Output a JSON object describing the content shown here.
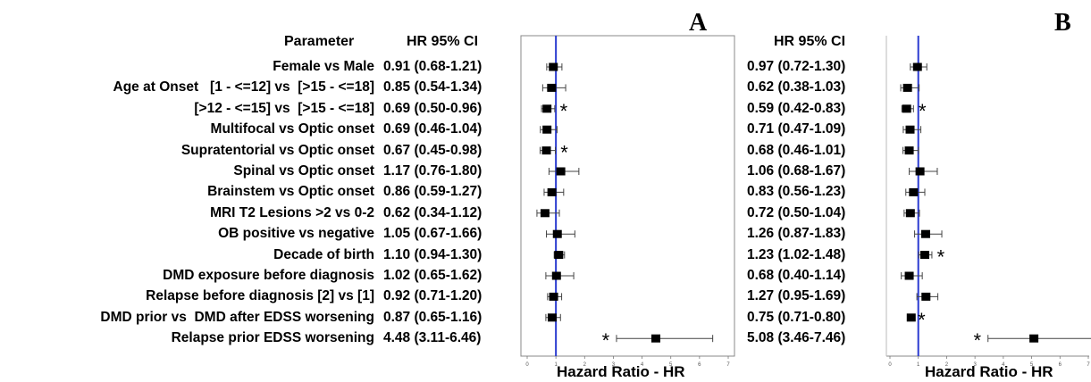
{
  "header": {
    "parameter": "Parameter",
    "hr_ci_a": "HR 95% CI",
    "hr_ci_b": "HR 95% CI"
  },
  "panels": {
    "a_letter": "A",
    "b_letter": "B"
  },
  "chart_data": [
    {
      "type": "forest",
      "panel": "A",
      "xlabel": "Hazard Ratio - HR",
      "xlim": [
        0,
        7
      ],
      "x_ticks": [
        "0",
        "1",
        "2",
        "3",
        "4",
        "5",
        "6",
        "7"
      ],
      "reference_line": 1,
      "reference_color": "#2a3bd0",
      "rows": [
        {
          "parameter": "Female vs Male",
          "hr": 0.91,
          "lo": 0.68,
          "hi": 1.21,
          "text": "0.91 (0.68-1.21)",
          "sig": false
        },
        {
          "parameter": "Age at Onset   [1 - <=12] vs  [>15 - <=18]",
          "hr": 0.85,
          "lo": 0.54,
          "hi": 1.34,
          "text": "0.85 (0.54-1.34)",
          "sig": false
        },
        {
          "parameter": "[>12 - <=15] vs  [>15 - <=18]",
          "hr": 0.69,
          "lo": 0.5,
          "hi": 0.96,
          "text": "0.69 (0.50-0.96)",
          "sig": true
        },
        {
          "parameter": "Multifocal vs Optic onset",
          "hr": 0.69,
          "lo": 0.46,
          "hi": 1.04,
          "text": "0.69 (0.46-1.04)",
          "sig": false
        },
        {
          "parameter": "Supratentorial vs Optic onset",
          "hr": 0.67,
          "lo": 0.45,
          "hi": 0.98,
          "text": "0.67 (0.45-0.98)",
          "sig": true
        },
        {
          "parameter": "Spinal vs Optic onset",
          "hr": 1.17,
          "lo": 0.76,
          "hi": 1.8,
          "text": "1.17 (0.76-1.80)",
          "sig": false
        },
        {
          "parameter": "Brainstem vs Optic onset",
          "hr": 0.86,
          "lo": 0.59,
          "hi": 1.27,
          "text": "0.86 (0.59-1.27)",
          "sig": false
        },
        {
          "parameter": "MRI T2 Lesions >2 vs 0-2",
          "hr": 0.62,
          "lo": 0.34,
          "hi": 1.12,
          "text": "0.62 (0.34-1.12)",
          "sig": false
        },
        {
          "parameter": "OB positive vs negative",
          "hr": 1.05,
          "lo": 0.67,
          "hi": 1.66,
          "text": "1.05 (0.67-1.66)",
          "sig": false
        },
        {
          "parameter": "Decade of birth",
          "hr": 1.1,
          "lo": 0.94,
          "hi": 1.3,
          "text": "1.10 (0.94-1.30)",
          "sig": false
        },
        {
          "parameter": "DMD exposure before diagnosis",
          "hr": 1.02,
          "lo": 0.65,
          "hi": 1.62,
          "text": "1.02 (0.65-1.62)",
          "sig": false
        },
        {
          "parameter": "Relapse before diagnosis [2] vs [1]",
          "hr": 0.92,
          "lo": 0.71,
          "hi": 1.2,
          "text": "0.92 (0.71-1.20)",
          "sig": false
        },
        {
          "parameter": "DMD prior vs  DMD after EDSS worsening",
          "hr": 0.87,
          "lo": 0.65,
          "hi": 1.16,
          "text": "0.87 (0.65-1.16)",
          "sig": false
        },
        {
          "parameter": "Relapse prior EDSS worsening",
          "hr": 4.48,
          "lo": 3.11,
          "hi": 6.46,
          "text": "4.48 (3.11-6.46)",
          "sig": true,
          "star_side": "left"
        }
      ]
    },
    {
      "type": "forest",
      "panel": "B",
      "xlabel": "Hazard Ratio - HR",
      "xlim": [
        0,
        7
      ],
      "x_ticks": [
        "0",
        "1",
        "2",
        "3",
        "4",
        "5",
        "6",
        "7"
      ],
      "reference_line": 1,
      "reference_color": "#2a3bd0",
      "rows": [
        {
          "hr": 0.97,
          "lo": 0.72,
          "hi": 1.3,
          "text": "0.97 (0.72-1.30)",
          "sig": false
        },
        {
          "hr": 0.62,
          "lo": 0.38,
          "hi": 1.03,
          "text": "0.62 (0.38-1.03)",
          "sig": false
        },
        {
          "hr": 0.59,
          "lo": 0.42,
          "hi": 0.83,
          "text": "0.59 (0.42-0.83)",
          "sig": true
        },
        {
          "hr": 0.71,
          "lo": 0.47,
          "hi": 1.09,
          "text": "0.71 (0.47-1.09)",
          "sig": false
        },
        {
          "hr": 0.68,
          "lo": 0.46,
          "hi": 1.01,
          "text": "0.68 (0.46-1.01)",
          "sig": false
        },
        {
          "hr": 1.06,
          "lo": 0.68,
          "hi": 1.67,
          "text": "1.06 (0.68-1.67)",
          "sig": false
        },
        {
          "hr": 0.83,
          "lo": 0.56,
          "hi": 1.23,
          "text": "0.83 (0.56-1.23)",
          "sig": false
        },
        {
          "hr": 0.72,
          "lo": 0.5,
          "hi": 1.04,
          "text": "0.72 (0.50-1.04)",
          "sig": false
        },
        {
          "hr": 1.26,
          "lo": 0.87,
          "hi": 1.83,
          "text": "1.26 (0.87-1.83)",
          "sig": false
        },
        {
          "hr": 1.23,
          "lo": 1.02,
          "hi": 1.48,
          "text": "1.23 (1.02-1.48)",
          "sig": true
        },
        {
          "hr": 0.68,
          "lo": 0.4,
          "hi": 1.14,
          "text": "0.68 (0.40-1.14)",
          "sig": false
        },
        {
          "hr": 1.27,
          "lo": 0.95,
          "hi": 1.69,
          "text": "1.27 (0.95-1.69)",
          "sig": false
        },
        {
          "hr": 0.75,
          "lo": 0.71,
          "hi": 0.8,
          "text": "0.75 (0.71-0.80)",
          "sig": true
        },
        {
          "hr": 5.08,
          "lo": 3.46,
          "hi": 7.46,
          "text": "5.08 (3.46-7.46)",
          "sig": true,
          "star_side": "left"
        }
      ]
    }
  ]
}
